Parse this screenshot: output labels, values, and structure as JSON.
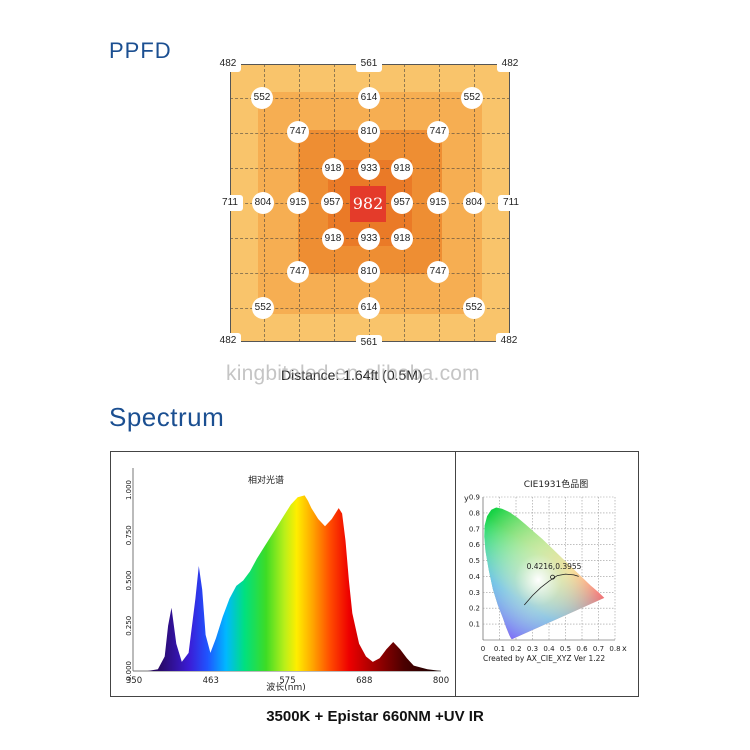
{
  "ppfd": {
    "title": "PPFD",
    "distance": "Distance: 1.64ft (0.5M)",
    "watermark": "kingbiteled.en.alibaba.com",
    "values": {
      "top_left": "482",
      "top_mid": "561",
      "top_right": "482",
      "r1_left": "552",
      "r1_mid": "614",
      "r1_right": "552",
      "r2_left": "747",
      "r2_mid": "810",
      "r2_right": "747",
      "r3_left": "918",
      "r3_mid": "933",
      "r3_right": "918",
      "c_far_left": "711",
      "c_left2": "804",
      "c_left1": "915",
      "c_left0": "957",
      "center": "982",
      "c_right0": "957",
      "c_right1": "915",
      "c_right2": "804",
      "c_far_right": "711",
      "r5_left": "918",
      "r5_mid": "933",
      "r5_right": "918",
      "r6_left": "747",
      "r6_mid": "810",
      "r6_right": "747",
      "r7_left": "552",
      "r7_mid": "614",
      "r7_right": "552",
      "bottom_left": "482",
      "bottom_mid": "561",
      "bottom_right": "482"
    }
  },
  "spectrum": {
    "title": "Spectrum",
    "caption": "3500K + Epistar 660NM +UV IR"
  },
  "chart_data": [
    {
      "type": "area",
      "title": "相对光谱",
      "xlabel": "波长(nm)",
      "ylabel": "",
      "xlim": [
        350,
        800
      ],
      "ylim": [
        0,
        1.0
      ],
      "x_ticks": [
        "350",
        "463",
        "575",
        "688",
        "800"
      ],
      "y_ticks": [
        "0.000",
        "0.250",
        "0.500",
        "0.750",
        "1.000"
      ],
      "x": [
        350,
        370,
        385,
        395,
        400,
        405,
        412,
        420,
        430,
        440,
        445,
        450,
        455,
        462,
        470,
        480,
        490,
        500,
        510,
        520,
        530,
        540,
        550,
        560,
        570,
        580,
        590,
        600,
        605,
        610,
        620,
        630,
        640,
        650,
        655,
        660,
        665,
        670,
        680,
        690,
        700,
        710,
        720,
        730,
        740,
        750,
        760,
        780,
        800
      ],
      "values": [
        0.0,
        0.0,
        0.01,
        0.08,
        0.25,
        0.35,
        0.15,
        0.05,
        0.1,
        0.4,
        0.58,
        0.45,
        0.2,
        0.1,
        0.18,
        0.3,
        0.4,
        0.47,
        0.5,
        0.55,
        0.62,
        0.68,
        0.74,
        0.8,
        0.86,
        0.92,
        0.96,
        0.97,
        0.94,
        0.9,
        0.84,
        0.8,
        0.84,
        0.9,
        0.87,
        0.72,
        0.5,
        0.32,
        0.15,
        0.08,
        0.05,
        0.07,
        0.12,
        0.16,
        0.12,
        0.07,
        0.03,
        0.01,
        0.0
      ]
    },
    {
      "type": "scatter",
      "title": "CIE1931色品图",
      "xlabel": "x",
      "ylabel": "y",
      "xlim": [
        0,
        0.8
      ],
      "ylim": [
        0,
        0.9
      ],
      "x_ticks": [
        "0",
        "0.1",
        "0.2",
        "0.3",
        "0.4",
        "0.5",
        "0.6",
        "0.7",
        "0.8"
      ],
      "y_ticks": [
        "0.1",
        "0.2",
        "0.3",
        "0.4",
        "0.5",
        "0.6",
        "0.7",
        "0.8",
        "0.9"
      ],
      "point_label": "0.4216,0.3955",
      "point": [
        0.4216,
        0.3955
      ],
      "footer": "Created by AX_CIE_XYZ Ver 1.22"
    }
  ]
}
